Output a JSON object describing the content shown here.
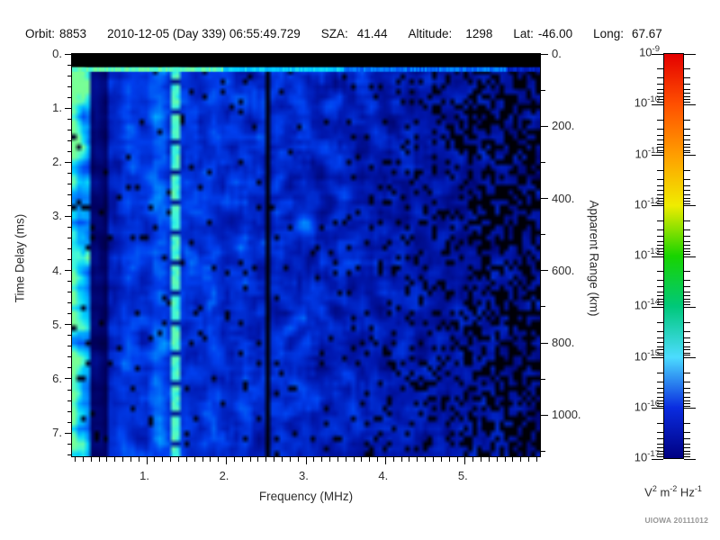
{
  "header": {
    "fields": [
      {
        "label": "Orbit:",
        "value": "8853"
      },
      {
        "label": "",
        "value": "2010-12-05 (Day 339) 06:55:49.729"
      },
      {
        "label": "SZA:",
        "value": "41.44"
      },
      {
        "label": "Altitude:",
        "value": "1298"
      },
      {
        "label": "Lat:",
        "value": "-46.00"
      },
      {
        "label": "Long:",
        "value": "67.67"
      }
    ]
  },
  "chart_data": {
    "type": "heatmap",
    "description": "Radar sounder ionogram: received spectral density vs frequency and time delay",
    "x_axis": {
      "label": "Frequency (MHz)",
      "min": 0.06,
      "max": 5.94,
      "major_ticks": [
        1,
        2,
        3,
        4,
        5
      ],
      "major_tick_labels": [
        "1.",
        "2.",
        "3.",
        "4.",
        "5."
      ],
      "minor_tick_step": 0.1
    },
    "y_axis_left": {
      "label": "Time Delay (ms)",
      "min": 0,
      "max": 7.43,
      "major_ticks": [
        0,
        1,
        2,
        3,
        4,
        5,
        6,
        7
      ],
      "major_tick_labels": [
        "0.",
        "1.",
        "2.",
        "3.",
        "4.",
        "5.",
        "6.",
        "7."
      ],
      "minor_tick_step": 0.2
    },
    "y_axis_right": {
      "label": "Apparent Range (km)",
      "min": 0,
      "max": 1114,
      "major_ticks": [
        0,
        200,
        400,
        600,
        800,
        1000
      ],
      "major_tick_labels": [
        "0.",
        "200.",
        "400.",
        "600.",
        "800.",
        "1000."
      ],
      "minor_tick_step": 100
    },
    "colorbar": {
      "scale": "log10",
      "decade_exponents": [
        -9,
        -10,
        -11,
        -12,
        -13,
        -14,
        -15,
        -16,
        -17
      ],
      "unit_parts": [
        {
          "base": "V",
          "exp": "2"
        },
        {
          "base": "m",
          "exp": "-2"
        },
        {
          "base": "Hz",
          "exp": "-1"
        }
      ],
      "gradient": [
        {
          "exp": -9,
          "color": "#e40000"
        },
        {
          "exp": -10,
          "color": "#ff5000"
        },
        {
          "exp": -11,
          "color": "#ff9e00"
        },
        {
          "exp": -12,
          "color": "#f0ec00"
        },
        {
          "exp": -13,
          "color": "#18d400"
        },
        {
          "exp": -14,
          "color": "#00c87a"
        },
        {
          "exp": -15,
          "color": "#4cdcff"
        },
        {
          "exp": -16,
          "color": "#0a2ce0"
        },
        {
          "exp": -17,
          "color": "#000082"
        }
      ]
    },
    "features": [
      {
        "name": "transmit-blank-band",
        "delay_ms": [
          0,
          0.24
        ],
        "appearance": "solid black band across all frequencies"
      },
      {
        "name": "first-return-line",
        "delay_ms": [
          0.25,
          0.33
        ],
        "appearance": "bright cyan-green horizontal line, fades to blue above ~3.5 MHz"
      },
      {
        "name": "low-frequency-bright-edge",
        "freq_mhz": [
          0.06,
          0.2
        ],
        "appearance": "bright cyan columns at left edge"
      },
      {
        "name": "dark-band",
        "freq_mhz": [
          0.29,
          0.49
        ],
        "appearance": "darkened vertical band"
      },
      {
        "name": "dashed-cyan-stripe",
        "freq_mhz": 1.36,
        "appearance": "bright dashed cyan vertical stripe, full height"
      },
      {
        "name": "black-stripe",
        "freq_mhz": 2.52,
        "appearance": "solid black vertical gap, full height"
      },
      {
        "name": "noise-gradient",
        "appearance": "blue speckle noise, brightest at low frequency, black patches increase beyond 4 MHz"
      }
    ]
  },
  "footer": {
    "stamp": "UIOWA 20111012"
  },
  "colors": {
    "background": "#ffffff",
    "tick_text": "#2e2e2e",
    "axis": "#000000"
  }
}
